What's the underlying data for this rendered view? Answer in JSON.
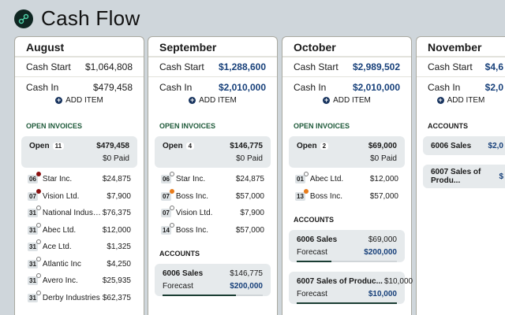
{
  "app": {
    "title": "Cash Flow",
    "logo_icon": "link-icon"
  },
  "labels": {
    "cash_start": "Cash Start",
    "cash_in": "Cash In",
    "add_item": "ADD ITEM",
    "open_invoices": "OPEN INVOICES",
    "accounts": "ACCOUNTS",
    "open": "Open",
    "forecast": "Forecast"
  },
  "colors": {
    "accent_blue": "#17407a",
    "green": "#1f5a3a",
    "overdue": "#8a1010",
    "due": "#e87b1a"
  },
  "months": [
    {
      "name": "August",
      "cash_start": "$1,064,808",
      "cash_in": "$479,458",
      "cash_blue": false,
      "open": {
        "count": "11",
        "total": "$479,458",
        "paid": "$0 Paid"
      },
      "invoices": [
        {
          "day": "06",
          "name": "Star Inc.",
          "amount": "$24,875",
          "status": "overdue"
        },
        {
          "day": "07",
          "name": "Vision Ltd.",
          "amount": "$7,900",
          "status": "overdue"
        },
        {
          "day": "31",
          "name": "National Industri...",
          "amount": "$76,375",
          "status": "open"
        },
        {
          "day": "31",
          "name": "Abec Ltd.",
          "amount": "$12,000",
          "status": "open"
        },
        {
          "day": "31",
          "name": "Ace Ltd.",
          "amount": "$1,325",
          "status": "open"
        },
        {
          "day": "31",
          "name": "Atlantic Inc",
          "amount": "$4,250",
          "status": "open"
        },
        {
          "day": "31",
          "name": "Avero Inc.",
          "amount": "$25,935",
          "status": "open"
        },
        {
          "day": "31",
          "name": "Derby Industries",
          "amount": "$62,375",
          "status": "open"
        }
      ],
      "accounts": []
    },
    {
      "name": "September",
      "cash_start": "$1,288,600",
      "cash_in": "$2,010,000",
      "cash_blue": true,
      "open": {
        "count": "4",
        "total": "$146,775",
        "paid": "$0 Paid"
      },
      "invoices": [
        {
          "day": "06",
          "name": "Star Inc.",
          "amount": "$24,875",
          "status": "open"
        },
        {
          "day": "07",
          "name": "Boss Inc.",
          "amount": "$57,000",
          "status": "due"
        },
        {
          "day": "07",
          "name": "Vision Ltd.",
          "amount": "$7,900",
          "status": "open"
        },
        {
          "day": "14",
          "name": "Boss Inc.",
          "amount": "$57,000",
          "status": "open"
        }
      ],
      "accounts": [
        {
          "name": "6006 Sales",
          "amount": "$146,775",
          "forecast": "$200,000",
          "progress": 0.73
        }
      ]
    },
    {
      "name": "October",
      "cash_start": "$2,989,502",
      "cash_in": "$2,010,000",
      "cash_blue": true,
      "open": {
        "count": "2",
        "total": "$69,000",
        "paid": "$0 Paid"
      },
      "invoices": [
        {
          "day": "01",
          "name": "Abec Ltd.",
          "amount": "$12,000",
          "status": "open"
        },
        {
          "day": "13",
          "name": "Boss Inc.",
          "amount": "$57,000",
          "status": "due"
        }
      ],
      "accounts": [
        {
          "name": "6006 Sales",
          "amount": "$69,000",
          "forecast": "$200,000",
          "progress": 0.345
        },
        {
          "name": "6007 Sales of Produc...",
          "amount": "$10,000",
          "forecast": "$10,000",
          "progress": 1.0
        }
      ]
    },
    {
      "name": "November",
      "cash_start": "$4,6",
      "cash_in": "$2,0",
      "cash_blue": true,
      "open": null,
      "invoices": [],
      "accounts": [
        {
          "name": "6006 Sales",
          "amount": "$2,0",
          "forecast": null,
          "progress": null
        },
        {
          "name": "6007 Sales of Produ...",
          "amount": "$",
          "forecast": null,
          "progress": null
        }
      ]
    }
  ]
}
